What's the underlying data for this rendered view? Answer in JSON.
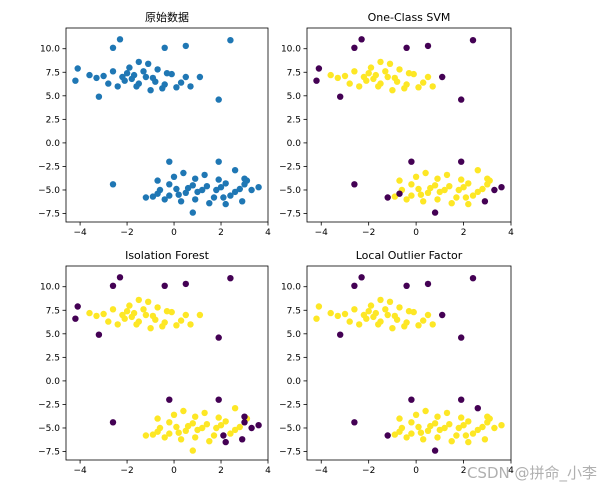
{
  "chart_data": [
    {
      "type": "scatter",
      "title": "原始数据",
      "xlim": [
        -4.6,
        4.0
      ],
      "ylim": [
        -8.4,
        12.2
      ],
      "xticks": [
        -4,
        -2,
        0,
        2,
        4
      ],
      "yticks": [
        -7.5,
        -5.0,
        -2.5,
        0.0,
        2.5,
        5.0,
        7.5,
        10.0
      ],
      "inlier_color": "#1f77b4",
      "cluster_top": [
        [
          -3.6,
          7.2
        ],
        [
          -3.0,
          7.1
        ],
        [
          -2.6,
          7.6
        ],
        [
          -2.2,
          7.0
        ],
        [
          -1.8,
          6.8
        ],
        [
          -1.5,
          6.3
        ],
        [
          -1.2,
          7.0
        ],
        [
          -0.8,
          6.5
        ],
        [
          -0.4,
          6.2
        ],
        [
          -0.1,
          7.3
        ],
        [
          0.3,
          6.4
        ],
        [
          0.7,
          6.0
        ],
        [
          -2.4,
          6.0
        ],
        [
          -1.9,
          8.0
        ],
        [
          -1.5,
          8.6
        ],
        [
          -1.1,
          8.4
        ],
        [
          -0.7,
          7.8
        ],
        [
          -0.3,
          7.4
        ],
        [
          -2.0,
          7.4
        ],
        [
          -1.6,
          6.0
        ],
        [
          -1.0,
          5.6
        ],
        [
          -0.5,
          5.8
        ],
        [
          0.1,
          5.9
        ],
        [
          -3.3,
          6.9
        ],
        [
          -2.8,
          6.3
        ],
        [
          -1.3,
          7.6
        ],
        [
          -0.9,
          6.9
        ],
        [
          0.5,
          7.0
        ],
        [
          -2.1,
          6.6
        ],
        [
          -1.7,
          7.2
        ]
      ],
      "cluster_bottom": [
        [
          -0.6,
          -5.0
        ],
        [
          -0.2,
          -4.4
        ],
        [
          0.2,
          -5.5
        ],
        [
          0.6,
          -4.8
        ],
        [
          1.0,
          -5.2
        ],
        [
          1.4,
          -4.6
        ],
        [
          1.8,
          -5.0
        ],
        [
          2.2,
          -4.3
        ],
        [
          0.0,
          -3.6
        ],
        [
          0.4,
          -3.2
        ],
        [
          0.9,
          -3.8
        ],
        [
          1.3,
          -3.4
        ],
        [
          1.7,
          -5.8
        ],
        [
          2.4,
          -5.6
        ],
        [
          2.8,
          -4.9
        ],
        [
          3.1,
          -4.0
        ],
        [
          -0.9,
          -5.7
        ],
        [
          -0.4,
          -6.0
        ],
        [
          0.3,
          -6.2
        ],
        [
          0.9,
          -6.0
        ],
        [
          1.5,
          -6.4
        ],
        [
          -0.7,
          -4.0
        ],
        [
          0.1,
          -4.9
        ],
        [
          0.8,
          -4.5
        ],
        [
          1.2,
          -5.0
        ],
        [
          2.0,
          -4.7
        ],
        [
          2.6,
          -5.2
        ],
        [
          -0.2,
          -5.6
        ],
        [
          0.5,
          -5.3
        ],
        [
          1.9,
          -3.9
        ]
      ],
      "outliers": [
        [
          -4.1,
          7.9
        ],
        [
          -4.2,
          6.6
        ],
        [
          -3.2,
          4.9
        ],
        [
          -2.6,
          10.1
        ],
        [
          -2.3,
          11.0
        ],
        [
          -0.4,
          10.1
        ],
        [
          0.5,
          10.3
        ],
        [
          1.1,
          7.0
        ],
        [
          1.9,
          4.6
        ],
        [
          2.4,
          10.9
        ],
        [
          -2.6,
          -4.4
        ],
        [
          -1.2,
          -5.8
        ],
        [
          -0.7,
          -5.4
        ],
        [
          -0.2,
          -2.0
        ],
        [
          0.8,
          -7.4
        ],
        [
          1.9,
          -2.0
        ],
        [
          2.6,
          -2.9
        ],
        [
          3.0,
          -3.8
        ],
        [
          3.3,
          -5.0
        ],
        [
          3.6,
          -4.7
        ],
        [
          2.9,
          -6.2
        ],
        [
          2.2,
          -6.5
        ],
        [
          3.0,
          -4.4
        ],
        [
          2.1,
          -5.8
        ]
      ]
    },
    {
      "type": "scatter",
      "title": "One-Class SVM",
      "xlim": [
        -4.6,
        4.0
      ],
      "ylim": [
        -8.4,
        12.2
      ],
      "xticks": [
        -4,
        -2,
        0,
        2,
        4
      ],
      "yticks": [
        -7.5,
        -5.0,
        -2.5,
        0.0,
        2.5,
        5.0,
        7.5,
        10.0
      ],
      "inlier_color": "#fde725",
      "outlier_color": "#440154",
      "flagged_outliers": [
        0,
        1,
        2,
        3,
        4,
        5,
        6,
        7,
        8,
        9,
        10,
        11,
        12,
        13,
        14,
        15,
        18,
        19,
        20
      ]
    },
    {
      "type": "scatter",
      "title": "Isolation Forest",
      "xlim": [
        -4.6,
        4.0
      ],
      "ylim": [
        -8.4,
        12.2
      ],
      "xticks": [
        -4,
        -2,
        0,
        2,
        4
      ],
      "yticks": [
        -7.5,
        -5.0,
        -2.5,
        0.0,
        2.5,
        5.0,
        7.5,
        10.0
      ],
      "inlier_color": "#fde725",
      "outlier_color": "#440154",
      "flagged_outliers": [
        0,
        1,
        2,
        3,
        4,
        5,
        6,
        8,
        9,
        10,
        13,
        15,
        17,
        18,
        19,
        20,
        21,
        22,
        23
      ]
    },
    {
      "type": "scatter",
      "title": "Local Outlier Factor",
      "xlim": [
        -4.6,
        4.0
      ],
      "ylim": [
        -8.4,
        12.2
      ],
      "xticks": [
        -4,
        -2,
        0,
        2,
        4
      ],
      "yticks": [
        -7.5,
        -5.0,
        -2.5,
        0.0,
        2.5,
        5.0,
        7.5,
        10.0
      ],
      "inlier_color": "#fde725",
      "outlier_color": "#440154",
      "flagged_outliers": [
        2,
        3,
        4,
        5,
        6,
        7,
        8,
        9,
        10,
        11,
        13,
        14,
        15,
        16
      ]
    }
  ],
  "watermark": "CSDN @拼命_小李"
}
